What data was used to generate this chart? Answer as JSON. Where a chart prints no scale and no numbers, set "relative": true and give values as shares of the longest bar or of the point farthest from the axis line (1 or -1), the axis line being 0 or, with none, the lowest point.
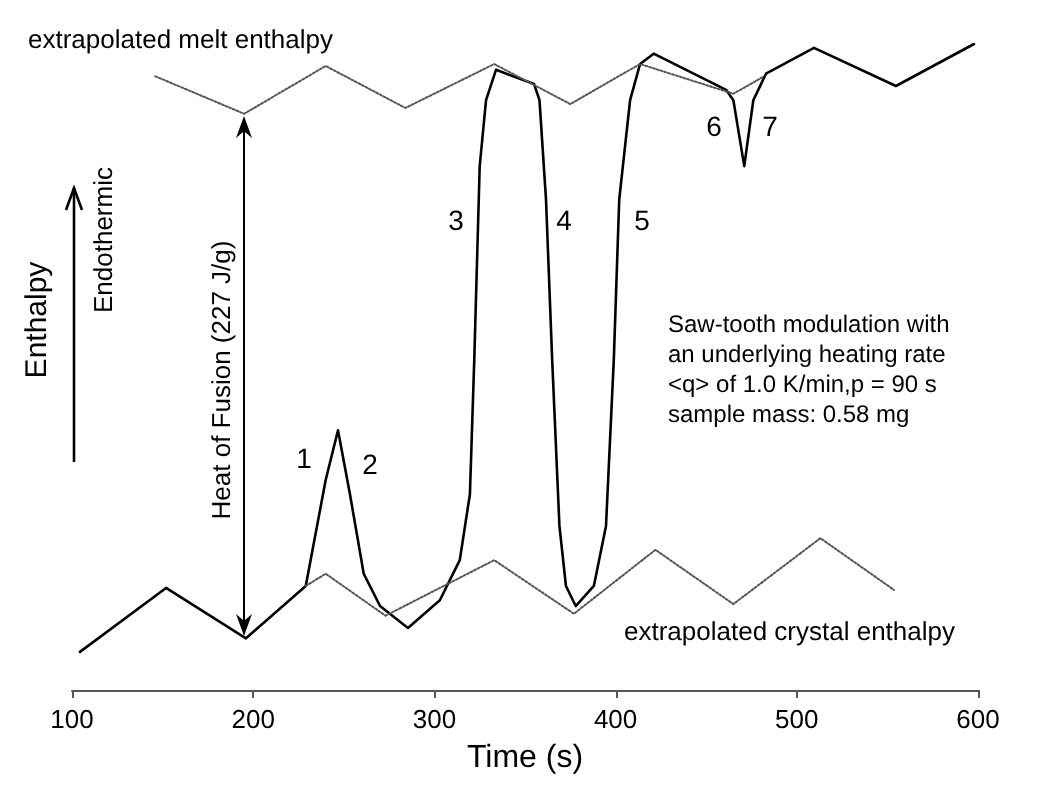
{
  "chart_data": {
    "type": "line",
    "relative": true,
    "xlabel": "Time (s)",
    "ylabel": "Enthalpy",
    "xlim": [
      100,
      600
    ],
    "xticks": [
      100,
      200,
      300,
      400,
      500,
      600
    ],
    "grid": false,
    "marker": "none",
    "series": [
      {
        "color": "#000000",
        "line_style": "solid",
        "x": [
          104.4,
          151.9,
          196,
          229,
          240,
          246.8,
          253.4,
          261,
          270,
          285.4,
          303,
          314,
          319.6,
          322,
          325,
          328.5,
          334,
          355,
          358,
          361.6,
          365,
          369,
          372.6,
          378,
          388,
          394.7,
          399,
          402,
          408,
          413.5,
          421,
          461,
          465,
          471,
          476,
          483,
          509.5,
          554.7,
          597.8
        ],
        "values": [
          0.059,
          0.158,
          0.08,
          0.161,
          0.325,
          0.402,
          0.303,
          0.18,
          0.13,
          0.096,
          0.139,
          0.201,
          0.303,
          0.511,
          0.811,
          0.913,
          0.96,
          0.938,
          0.913,
          0.759,
          0.511,
          0.254,
          0.161,
          0.13,
          0.161,
          0.254,
          0.511,
          0.759,
          0.913,
          0.969,
          0.985,
          0.929,
          0.913,
          0.811,
          0.913,
          0.954,
          0.994,
          0.935,
          1.0
        ]
      },
      {
        "color": "#555555",
        "line_style": "dotted",
        "x": [
          146,
          195,
          240,
          284,
          333,
          375,
          413.5,
          465,
          482
        ],
        "values": [
          0.95,
          0.892,
          0.966,
          0.901,
          0.969,
          0.907,
          0.969,
          0.923,
          0.95
        ]
      },
      {
        "color": "#555555",
        "line_style": "dotted",
        "x": [
          229,
          240,
          273,
          333,
          377,
          422,
          465,
          513,
          553.6
        ],
        "values": [
          0.161,
          0.18,
          0.115,
          0.201,
          0.118,
          0.217,
          0.133,
          0.235,
          0.155
        ]
      }
    ],
    "annotations": [
      "extrapolated melt enthalpy",
      "extrapolated crystal enthalpy",
      "Heat of Fusion (227 J/g)",
      "Endothermic",
      "Saw-tooth modulation with\nan underlying heating rate\n<q>  of  1.0 K/min,p = 90 s\nsample mass: 0.58 mg",
      "1",
      "2",
      "3",
      "4",
      "5",
      "6",
      "7"
    ]
  }
}
